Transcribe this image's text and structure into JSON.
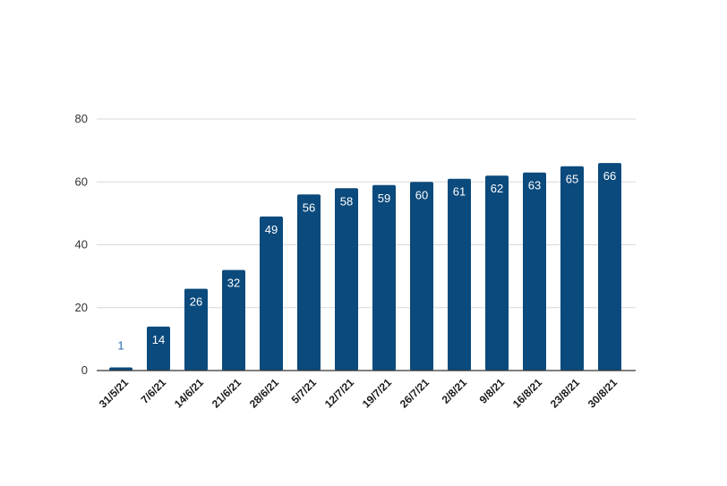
{
  "chart_data": {
    "type": "bar",
    "title": "",
    "xlabel": "",
    "ylabel": "",
    "categories": [
      "31/5/21",
      "7/6/21",
      "14/6/21",
      "21/6/21",
      "28/6/21",
      "5/7/21",
      "12/7/21",
      "19/7/21",
      "26/7/21",
      "2/8/21",
      "9/8/21",
      "16/8/21",
      "23/8/21",
      "30/8/21"
    ],
    "values": [
      1,
      14,
      26,
      32,
      49,
      56,
      58,
      59,
      60,
      61,
      62,
      63,
      65,
      66
    ],
    "data_labels": [
      "1",
      "14",
      "26",
      "32",
      "49",
      "56",
      "58",
      "59",
      "60",
      "61",
      "62",
      "63",
      "65",
      "66"
    ],
    "ylim": [
      0,
      80
    ],
    "yticks": [
      0,
      20,
      40,
      60,
      80
    ],
    "ytick_labels": [
      "0",
      "20",
      "40",
      "60",
      "80"
    ],
    "grid": true,
    "legend": "none",
    "bar_color": "#0b4a7c",
    "label_inside_color": "#ffffff",
    "label_outside_color": "#2a6aa8",
    "grid_color": "#d9d9d9",
    "axis_color": "#333333"
  }
}
